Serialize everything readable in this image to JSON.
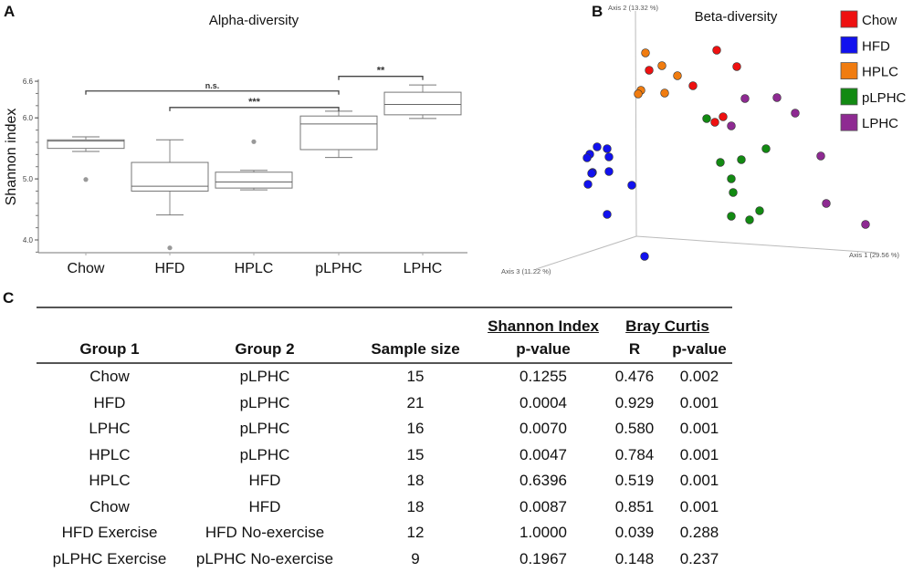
{
  "panels": {
    "a": "A",
    "b": "B",
    "c": "C"
  },
  "chart_data": [
    {
      "type": "box",
      "title": "Alpha-diversity",
      "xlabel": "",
      "ylabel": "Shannon index",
      "ylim": [
        3.8,
        6.6
      ],
      "yticks": [
        "4.0",
        "5.0",
        "6.0",
        "6.6"
      ],
      "categories": [
        "Chow",
        "HFD",
        "HPLC",
        "pLPHC",
        "LPHC"
      ],
      "boxes": [
        {
          "whisker_low": 5.45,
          "q1": 5.5,
          "median": 5.62,
          "q3": 5.64,
          "whisker_high": 5.69,
          "outliers": [
            4.99
          ]
        },
        {
          "whisker_low": 4.41,
          "q1": 4.8,
          "median": 4.88,
          "q3": 5.27,
          "whisker_high": 5.64,
          "outliers": [
            3.87
          ]
        },
        {
          "whisker_low": 4.82,
          "q1": 4.85,
          "median": 4.95,
          "q3": 5.11,
          "whisker_high": 5.14,
          "outliers": [
            5.61
          ]
        },
        {
          "whisker_low": 5.35,
          "q1": 5.48,
          "median": 5.9,
          "q3": 6.03,
          "whisker_high": 6.11,
          "outliers": []
        },
        {
          "whisker_low": 5.99,
          "q1": 6.05,
          "median": 6.22,
          "q3": 6.42,
          "whisker_high": 6.54,
          "outliers": []
        }
      ],
      "annotations": [
        {
          "from": "Chow",
          "to": "pLPHC",
          "label": "n.s.",
          "level": 6.44
        },
        {
          "from": "HFD",
          "to": "pLPHC",
          "label": "***",
          "level": 6.17
        },
        {
          "from": "pLPHC",
          "to": "LPHC",
          "label": "**",
          "level": 6.68
        }
      ]
    },
    {
      "type": "scatter",
      "title": "Beta-diversity",
      "axes": {
        "axis1": "Axis 1 (29.56 %)",
        "axis2": "Axis 2 (13.32 %)",
        "axis3": "Axis 3 (11.22 %)"
      },
      "legend_position": "top-right",
      "series": [
        {
          "name": "Chow",
          "color": "#ee1111",
          "points": [
            [
              0.88,
              2.04
            ],
            [
              1.1,
              1.86
            ],
            [
              0.14,
              1.82
            ],
            [
              0.62,
              1.65
            ],
            [
              0.95,
              1.31
            ],
            [
              0.86,
              1.25
            ]
          ]
        },
        {
          "name": "HFD",
          "color": "#1111ee",
          "points": [
            [
              -0.43,
              0.98
            ],
            [
              -0.32,
              0.96
            ],
            [
              -0.51,
              0.9
            ],
            [
              -0.54,
              0.86
            ],
            [
              -0.3,
              0.87
            ],
            [
              -0.48,
              0.7
            ],
            [
              -0.49,
              0.69
            ],
            [
              -0.3,
              0.71
            ],
            [
              -0.53,
              0.57
            ],
            [
              -0.05,
              0.56
            ],
            [
              -0.32,
              0.24
            ],
            [
              0.09,
              -0.22
            ]
          ]
        },
        {
          "name": "HPLC",
          "color": "#f07c10",
          "points": [
            [
              0.1,
              2.01
            ],
            [
              0.28,
              1.87
            ],
            [
              0.45,
              1.76
            ],
            [
              0.05,
              1.6
            ],
            [
              0.02,
              1.56
            ],
            [
              0.31,
              1.57
            ]
          ]
        },
        {
          "name": "pLPHC",
          "color": "#128a12",
          "points": [
            [
              0.77,
              1.29
            ],
            [
              1.42,
              0.96
            ],
            [
              0.92,
              0.81
            ],
            [
              1.15,
              0.84
            ],
            [
              1.04,
              0.63
            ],
            [
              1.06,
              0.48
            ],
            [
              1.35,
              0.28
            ],
            [
              1.04,
              0.22
            ],
            [
              1.24,
              0.18
            ]
          ]
        },
        {
          "name": "LPHC",
          "color": "#8e2a92",
          "points": [
            [
              1.19,
              1.51
            ],
            [
              1.54,
              1.52
            ],
            [
              1.74,
              1.35
            ],
            [
              1.04,
              1.21
            ],
            [
              2.02,
              0.88
            ],
            [
              2.08,
              0.36
            ],
            [
              2.51,
              0.13
            ]
          ]
        }
      ]
    }
  ],
  "table": {
    "group_headers": {
      "shannon": "Shannon Index",
      "bray": "Bray Curtis"
    },
    "columns": [
      "Group 1",
      "Group 2",
      "Sample size",
      "p-value",
      "R",
      "p-value"
    ],
    "rows": [
      [
        "Chow",
        "pLPHC",
        "15",
        "0.1255",
        "0.476",
        "0.002"
      ],
      [
        "HFD",
        "pLPHC",
        "21",
        "0.0004",
        "0.929",
        "0.001"
      ],
      [
        "LPHC",
        "pLPHC",
        "16",
        "0.0070",
        "0.580",
        "0.001"
      ],
      [
        "HPLC",
        "pLPHC",
        "15",
        "0.0047",
        "0.784",
        "0.001"
      ],
      [
        "HPLC",
        "HFD",
        "18",
        "0.6396",
        "0.519",
        "0.001"
      ],
      [
        "Chow",
        "HFD",
        "18",
        "0.0087",
        "0.851",
        "0.001"
      ],
      [
        "HFD Exercise",
        "HFD No-exercise",
        "12",
        "1.0000",
        "0.039",
        "0.288"
      ],
      [
        "pLPHC Exercise",
        "pLPHC No-exercise",
        "9",
        "0.1967",
        "0.148",
        "0.237"
      ]
    ]
  }
}
